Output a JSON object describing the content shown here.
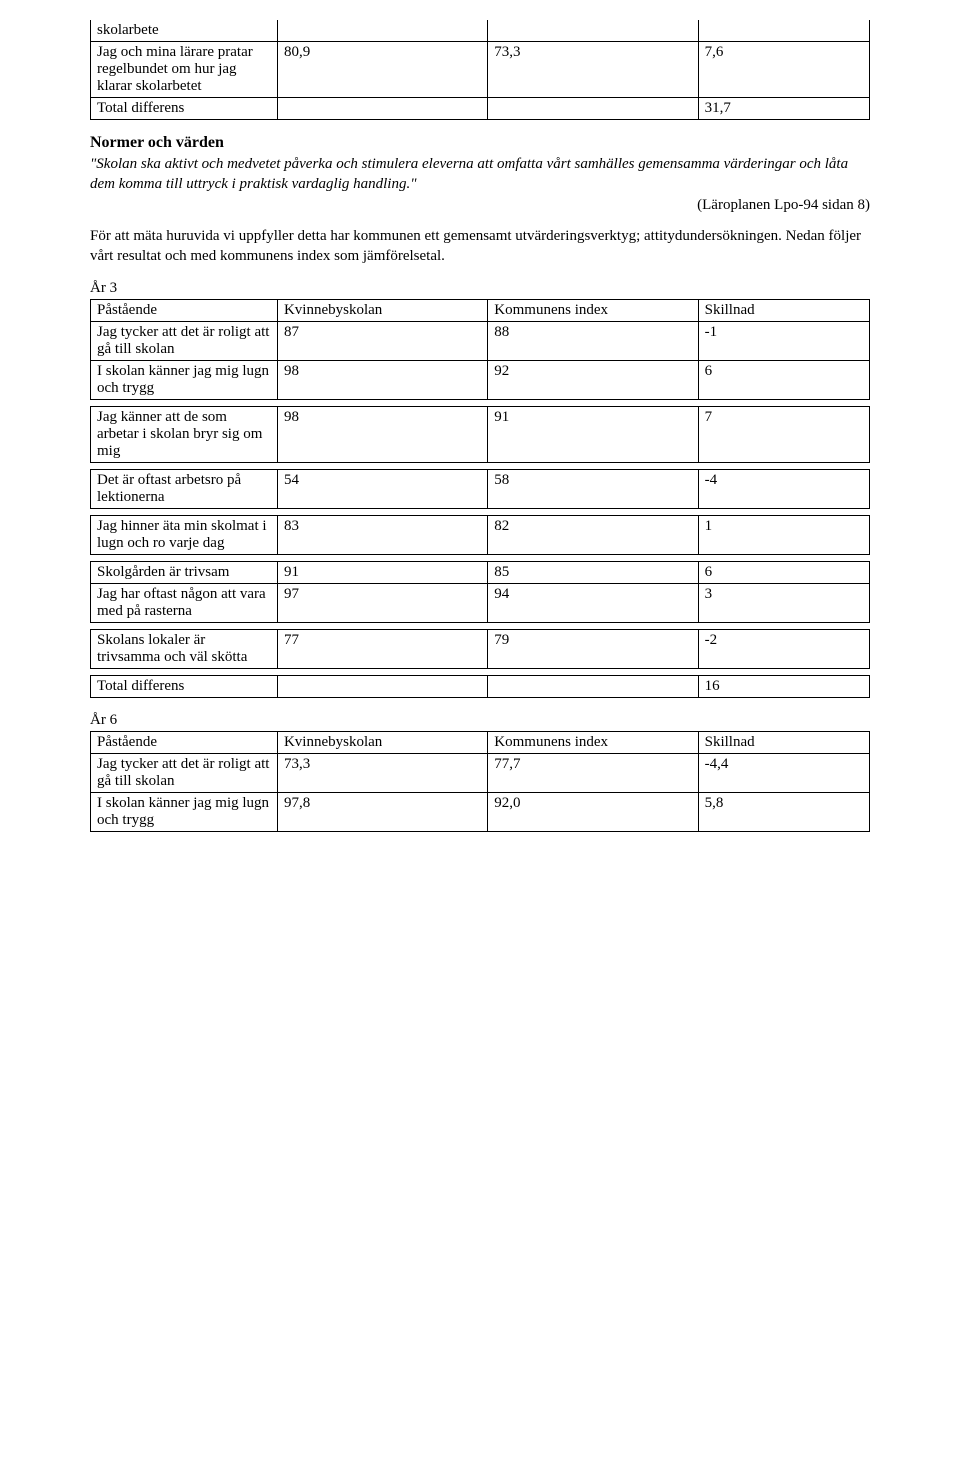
{
  "topTable": {
    "rows": [
      {
        "label": "skolarbete",
        "c2": "",
        "c3": "",
        "c4": ""
      },
      {
        "label": "Jag och mina lärare pratar regelbundet om hur jag klarar skolarbetet",
        "c2": "80,9",
        "c3": "73,3",
        "c4": "7,6"
      },
      {
        "label": "Total differens",
        "c2": "",
        "c3": "",
        "c4": "31,7"
      }
    ]
  },
  "sectionHeading": "Normer och värden",
  "quote": "\"Skolan ska aktivt och medvetet påverka och stimulera eleverna att omfatta vårt samhälles gemensamma värderingar och låta dem komma till uttryck i praktisk vardaglig handling.\"",
  "quoteAttribution": "(Läroplanen Lpo-94 sidan 8)",
  "bodyText": "För att mäta huruvida vi uppfyller detta har kommunen ett gemensamt utvärderingsverktyg; attitydundersökningen. Nedan följer vårt resultat och med kommunens index som jämförelsetal.",
  "year3": {
    "label": "År 3",
    "header": {
      "c1": "Påstående",
      "c2": "Kvinnebyskolan",
      "c3": "Kommunens index",
      "c4": "Skillnad"
    },
    "group1": [
      {
        "label": "Jag tycker att det är roligt att gå till skolan",
        "c2": "87",
        "c3": "88",
        "c4": "-1"
      },
      {
        "label": "I skolan känner jag mig lugn och trygg",
        "c2": "98",
        "c3": "92",
        "c4": "6"
      }
    ],
    "group2": [
      {
        "label": "Jag känner att de som arbetar i skolan bryr sig om mig",
        "c2": "98",
        "c3": "91",
        "c4": "7"
      }
    ],
    "group3": [
      {
        "label": "Det är oftast arbetsro på lektionerna",
        "c2": "54",
        "c3": "58",
        "c4": "-4"
      }
    ],
    "group4": [
      {
        "label": "Jag hinner äta min skolmat i lugn och ro varje dag",
        "c2": "83",
        "c3": "82",
        "c4": "1"
      }
    ],
    "group5": [
      {
        "label": "Skolgården är trivsam",
        "c2": "91",
        "c3": "85",
        "c4": "6"
      },
      {
        "label": "Jag har oftast någon att vara med på rasterna",
        "c2": "97",
        "c3": "94",
        "c4": "3"
      }
    ],
    "group6": [
      {
        "label": "Skolans lokaler är trivsamma och väl skötta",
        "c2": "77",
        "c3": "79",
        "c4": "-2"
      }
    ],
    "totalRow": {
      "label": "Total differens",
      "c2": "",
      "c3": "",
      "c4": "16"
    }
  },
  "year6": {
    "label": "År 6",
    "header": {
      "c1": "Påstående",
      "c2": "Kvinnebyskolan",
      "c3": "Kommunens index",
      "c4": "Skillnad"
    },
    "rows": [
      {
        "label": "Jag tycker att det är roligt att gå till skolan",
        "c2": "73,3",
        "c3": "77,7",
        "c4": "-4,4"
      },
      {
        "label": "I skolan känner jag mig lugn och trygg",
        "c2": "97,8",
        "c3": "92,0",
        "c4": "5,8"
      }
    ]
  }
}
